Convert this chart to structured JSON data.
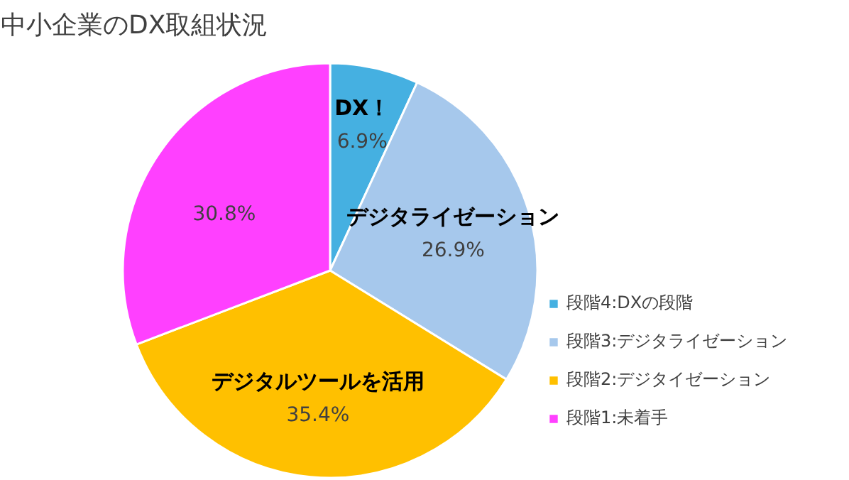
{
  "chart_data": {
    "type": "pie",
    "title": "中小企業のDX取組状況",
    "categories": [
      "段階4:DXの段階",
      "段階3:デジタライゼーション",
      "段階2:デジタイゼーション",
      "段階1:未着手"
    ],
    "values": [
      6.9,
      26.9,
      35.4,
      30.8
    ],
    "colors": [
      "#45b0e1",
      "#a6c8ec",
      "#ffc000",
      "#ff40ff"
    ],
    "value_labels": [
      "6.9%",
      "26.9%",
      "35.4%",
      "30.8%"
    ],
    "annotations": [
      "DX！",
      "デジタライゼーション",
      "デジタルツールを活用"
    ],
    "legend": "right"
  }
}
